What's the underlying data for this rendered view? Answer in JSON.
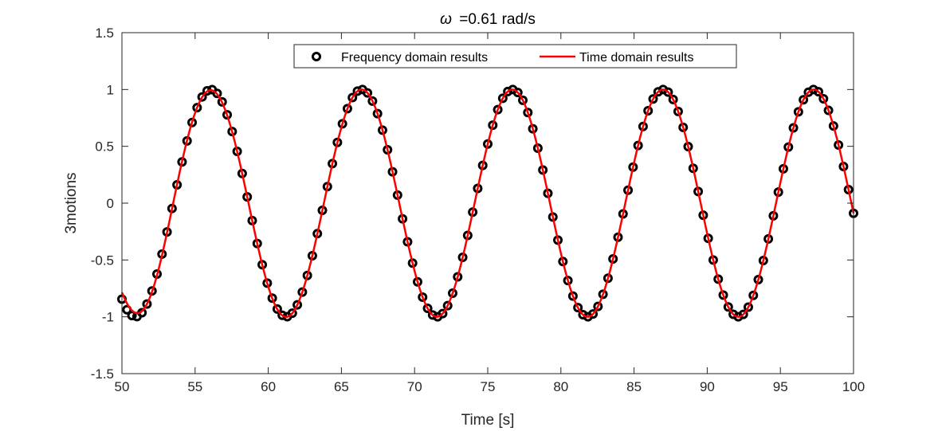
{
  "chart_data": {
    "type": "line",
    "title": "=0.61 rad/s",
    "title_symbol": "ω",
    "xlabel": "Time [s]",
    "ylabel": "3motions",
    "xlim": [
      50,
      100
    ],
    "ylim": [
      -1.5,
      1.5
    ],
    "xticks": [
      50,
      55,
      60,
      65,
      70,
      75,
      80,
      85,
      90,
      95,
      100
    ],
    "yticks": [
      -1.5,
      -1,
      -0.5,
      0,
      0.5,
      1,
      1.5
    ],
    "xtick_labels": [
      "50",
      "55",
      "60",
      "65",
      "70",
      "75",
      "80",
      "85",
      "90",
      "95",
      "100"
    ],
    "ytick_labels": [
      "-1.5",
      "-1",
      "-0.5",
      "0",
      "0.5",
      "1",
      "1.5"
    ],
    "grid": false,
    "legend_position": "top",
    "series": [
      {
        "name": "Frequency domain results",
        "style": "markers",
        "marker": "circle",
        "color": "#000000",
        "model": {
          "kind": "sine",
          "amplitude": 1.0,
          "omega": 0.61,
          "phase": -1.22,
          "x_start": 50,
          "x_end": 100,
          "n_points": 147
        }
      },
      {
        "name": "Time domain results",
        "style": "line",
        "color": "#ff0000",
        "model": {
          "kind": "sine",
          "amplitude": 1.0,
          "omega": 0.61,
          "phase": -1.22,
          "x_start": 50,
          "x_end": 100,
          "n_points": 600,
          "transient": {
            "amplitude_decay": 0.07,
            "start_amplitude": 0.93,
            "tau": 3.0
          }
        }
      }
    ]
  }
}
